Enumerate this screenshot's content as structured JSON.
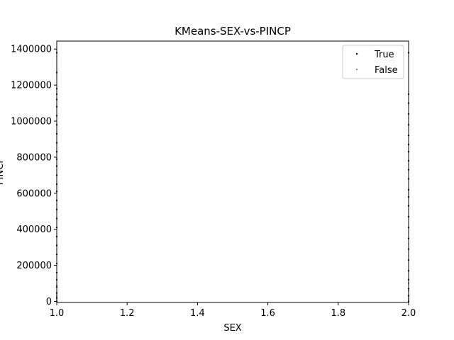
{
  "chart_data": {
    "type": "scatter",
    "title": "KMeans-SEX-vs-PINCP",
    "xlabel": "SEX",
    "ylabel": "PINCP",
    "xlim": [
      1.0,
      2.0
    ],
    "ylim": [
      0,
      1450000
    ],
    "x_ticks": [
      1.0,
      1.2,
      1.4,
      1.6,
      1.8,
      2.0
    ],
    "x_tick_labels": [
      "1.0",
      "1.2",
      "1.4",
      "1.6",
      "1.8",
      "2.0"
    ],
    "y_ticks": [
      0,
      200000,
      400000,
      600000,
      800000,
      1000000,
      1200000,
      1400000
    ],
    "y_tick_labels": [
      "0",
      "200000",
      "400000",
      "600000",
      "800000",
      "1000000",
      "1200000",
      "1400000"
    ],
    "grid": false,
    "legend_position": "top-right",
    "series": [
      {
        "name": "True",
        "color": "#000000",
        "points": [
          [
            1,
            0
          ],
          [
            1,
            20000
          ],
          [
            1,
            45000
          ],
          [
            1,
            80000
          ],
          [
            1,
            120000
          ],
          [
            1,
            160000
          ],
          [
            1,
            210000
          ],
          [
            1,
            260000
          ],
          [
            1,
            310000
          ],
          [
            1,
            360000
          ],
          [
            1,
            410000
          ],
          [
            1,
            460000
          ],
          [
            1,
            510000
          ],
          [
            1,
            560000
          ],
          [
            1,
            610000
          ],
          [
            1,
            650000
          ],
          [
            1,
            700000
          ],
          [
            1,
            750000
          ],
          [
            1,
            790000
          ],
          [
            1,
            830000
          ],
          [
            1,
            880000
          ],
          [
            1,
            930000
          ],
          [
            1,
            980000
          ],
          [
            1,
            1030000
          ],
          [
            1,
            1080000
          ],
          [
            1,
            1120000
          ],
          [
            1,
            1150000
          ],
          [
            1,
            1180000
          ],
          [
            1,
            1270000
          ],
          [
            1,
            1380000
          ],
          [
            2,
            0
          ],
          [
            2,
            30000
          ],
          [
            2,
            70000
          ],
          [
            2,
            120000
          ],
          [
            2,
            170000
          ],
          [
            2,
            230000
          ],
          [
            2,
            290000
          ],
          [
            2,
            350000
          ],
          [
            2,
            410000
          ],
          [
            2,
            470000
          ],
          [
            2,
            530000
          ],
          [
            2,
            580000
          ],
          [
            2,
            620000
          ],
          [
            2,
            680000
          ],
          [
            2,
            730000
          ],
          [
            2,
            780000
          ],
          [
            2,
            830000
          ],
          [
            2,
            870000
          ],
          [
            2,
            920000
          ],
          [
            2,
            980000
          ],
          [
            2,
            1040000
          ],
          [
            2,
            1100000
          ],
          [
            2,
            1150000
          ],
          [
            2,
            1380000
          ]
        ]
      },
      {
        "name": "False",
        "color": "#808080",
        "points": [
          [
            1,
            5000
          ],
          [
            1,
            15000
          ],
          [
            1,
            30000
          ],
          [
            1,
            50000
          ],
          [
            1,
            90000
          ],
          [
            2,
            5000
          ],
          [
            2,
            15000
          ],
          [
            2,
            35000
          ],
          [
            2,
            60000
          ],
          [
            2,
            100000
          ]
        ]
      }
    ]
  }
}
